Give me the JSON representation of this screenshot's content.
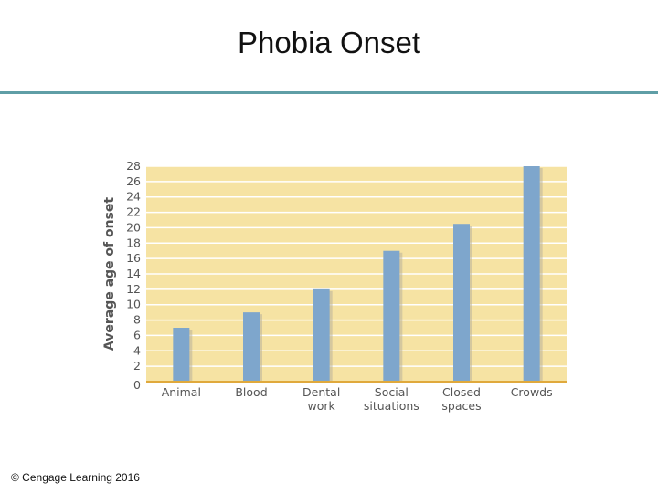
{
  "slide": {
    "title": "Phobia Onset",
    "copyright": "© Cengage Learning 2016"
  },
  "colors": {
    "plot_background": "#f6e3a3",
    "gridline": "#ffffff",
    "bar": "#7ea6cc",
    "bar_shadow": "#b9b39a",
    "baseline": "#e0a93c",
    "title_rule": "#5f9ea6"
  },
  "chart_data": {
    "type": "bar",
    "title": "",
    "ylabel": "Average age of onset",
    "xlabel": "",
    "categories": [
      [
        "Animal"
      ],
      [
        "Blood"
      ],
      [
        "Dental",
        "work"
      ],
      [
        "Social",
        "situations"
      ],
      [
        "Closed",
        "spaces"
      ],
      [
        "Crowds"
      ]
    ],
    "values": [
      7,
      9,
      12,
      17,
      20.5,
      28
    ],
    "ylim": [
      0,
      28
    ],
    "yticks": [
      "0",
      "2",
      "4",
      "6",
      "8",
      "10",
      "12",
      "14",
      "16",
      "18",
      "20",
      "22",
      "24",
      "26",
      "28"
    ],
    "grid": true
  }
}
